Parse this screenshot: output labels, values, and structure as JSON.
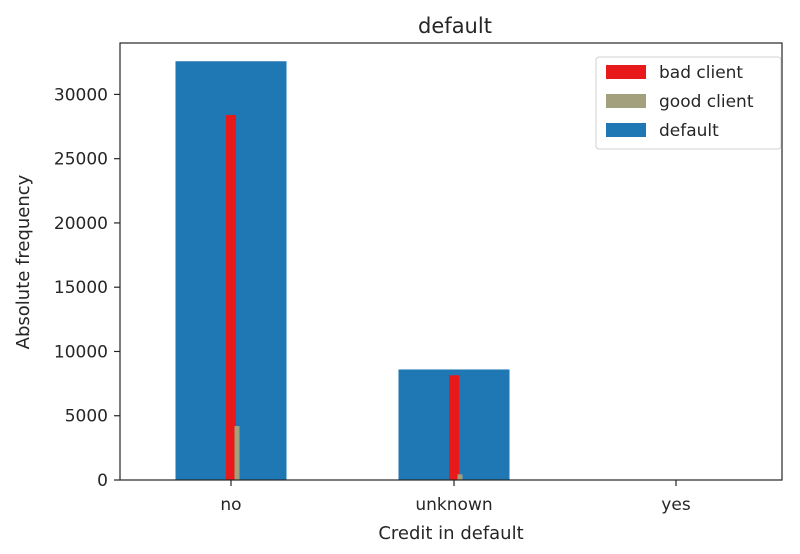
{
  "chart_data": {
    "type": "bar",
    "title": "default",
    "xlabel": "Credit in default",
    "ylabel": "Absolute frequency",
    "categories": [
      "no",
      "unknown",
      "yes"
    ],
    "ylim": [
      0,
      34000
    ],
    "yticks": [
      0,
      5000,
      10000,
      15000,
      20000,
      25000,
      30000
    ],
    "legend_position": "top-right",
    "grid": false,
    "series": [
      {
        "name": "bad client",
        "values": [
          28400,
          8150,
          3
        ],
        "color": "#e8191b",
        "bar_style": "thin"
      },
      {
        "name": "good client",
        "values": [
          4200,
          440,
          0
        ],
        "color": "#a3a07e",
        "bar_style": "thinner"
      },
      {
        "name": "default",
        "values": [
          32580,
          8600,
          3
        ],
        "color": "#1f77b4",
        "bar_style": "wide"
      }
    ]
  }
}
